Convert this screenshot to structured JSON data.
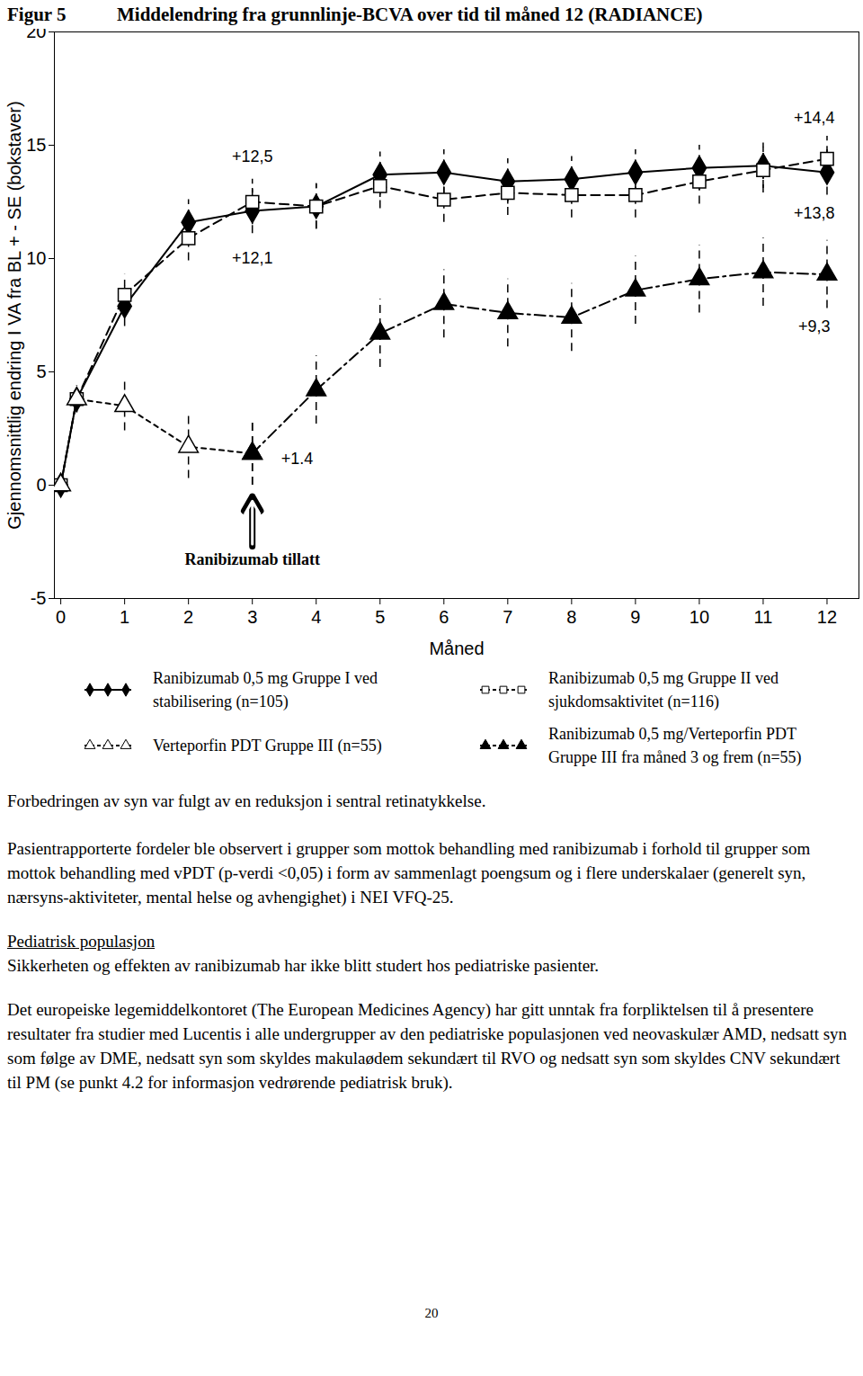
{
  "chart_data": {
    "type": "line",
    "title": "Middelendring fra grunnlinje-BCVA over tid til måned 12 (RADIANCE)",
    "x_label": "Måned",
    "y_label": "Gjennomsnittlig endring I VA fra BL + - SE (bokstaver)",
    "x": [
      0,
      0.25,
      1,
      2,
      3,
      4,
      5,
      6,
      7,
      8,
      9,
      10,
      11,
      12
    ],
    "xlim": [
      -0.1,
      12.5
    ],
    "xticks": [
      0,
      1,
      2,
      3,
      4,
      5,
      6,
      7,
      8,
      9,
      10,
      11,
      12
    ],
    "ylim": [
      -5,
      20
    ],
    "yticks": [
      -5,
      0,
      5,
      10,
      15,
      20
    ],
    "grid": false,
    "series": [
      {
        "name": "Ranibizumab 0,5 mg Gruppe I ved stabilisering (n=105)",
        "color": "#000000",
        "marker": "diamond",
        "line_style": "solid",
        "values": [
          0,
          3.8,
          7.9,
          11.6,
          12.1,
          12.3,
          13.7,
          13.8,
          13.4,
          13.5,
          13.8,
          14.0,
          14.1,
          13.8
        ],
        "errors": [
          0,
          0.6,
          0.9,
          1.0,
          1.0,
          1.0,
          1.0,
          1.0,
          1.0,
          1.0,
          1.0,
          1.0,
          1.0,
          1.0
        ]
      },
      {
        "name": "Ranibizumab 0,5 mg Gruppe II ved sjukdomsaktivitet (n=116)",
        "color": "#000000",
        "marker": "square-open",
        "line_style": "dashed",
        "values": [
          0,
          3.8,
          8.4,
          10.9,
          12.5,
          12.3,
          13.2,
          12.6,
          12.9,
          12.8,
          12.8,
          13.4,
          13.9,
          14.4
        ],
        "errors": [
          0,
          0.6,
          0.9,
          1.0,
          1.0,
          1.0,
          1.0,
          1.0,
          1.0,
          1.0,
          1.0,
          1.0,
          1.0,
          1.0
        ]
      },
      {
        "name": "Verteporfin PDT Gruppe III (n=55)",
        "color": "#000000",
        "marker": "triangle-open",
        "line_style": "dotted",
        "values": [
          0,
          3.8,
          3.5,
          1.7,
          1.4,
          null,
          null,
          null,
          null,
          null,
          null,
          null,
          null,
          null
        ],
        "errors": [
          0,
          0.6,
          1.1,
          1.4,
          1.4,
          null,
          null,
          null,
          null,
          null,
          null,
          null,
          null,
          null
        ]
      },
      {
        "name": "Ranibizumab 0,5 mg/Verteporfin PDT Gruppe III fra måned 3 og frem (n=55)",
        "color": "#000000",
        "marker": "triangle",
        "line_style": "dashdot",
        "values": [
          null,
          null,
          null,
          null,
          1.4,
          4.2,
          6.7,
          8.0,
          7.6,
          7.4,
          8.6,
          9.1,
          9.4,
          9.3
        ],
        "errors": [
          null,
          null,
          null,
          null,
          1.4,
          1.5,
          1.5,
          1.5,
          1.5,
          1.5,
          1.5,
          1.5,
          1.5,
          1.5
        ]
      }
    ],
    "annotations": [
      {
        "text": "+12,5",
        "x": 3,
        "y": 14.5
      },
      {
        "text": "+12,1",
        "x": 3,
        "y": 10.0
      },
      {
        "text": "+1.4",
        "x": 3.7,
        "y": 1.15
      },
      {
        "text": "+14,4",
        "x": 11.8,
        "y": 16.2
      },
      {
        "text": "+13,8",
        "x": 11.8,
        "y": 12.0
      },
      {
        "text": "+9,3",
        "x": 11.8,
        "y": 7.0
      },
      {
        "text": "Ranibizumab tillatt",
        "x": 3,
        "y": -3.3,
        "arrow": true
      }
    ]
  },
  "document": {
    "figure_label": "Figur 5",
    "caption": "Forbedringen av syn var fulgt av en reduksjon i sentral retinatykkelse.",
    "paragraph_1": "Pasientrapporterte fordeler ble observert i grupper som mottok behandling med ranibizumab i forhold til grupper som mottok behandling med vPDT (p-verdi <0,05) i form av sammenlagt poengsum og i flere underskalaer (generelt syn, nærsyns-aktiviteter, mental helse og avhengighet) i NEI VFQ-25.",
    "heading": "Pediatrisk populasjon",
    "paragraph_2": "Sikkerheten og effekten av ranibizumab har ikke blitt studert hos pediatriske pasienter.",
    "paragraph_3": "Det europeiske legemiddelkontoret (The European Medicines Agency) har gitt unntak fra forpliktelsen til å presentere resultater fra studier med Lucentis i alle undergrupper av den pediatriske populasjonen ved neovaskulær AMD, nedsatt syn som følge av DME, nedsatt syn som skyldes makulaødem sekundært til RVO og nedsatt syn som skyldes CNV sekundært til PM (se punkt 4.2 for informasjon vedrørende pediatrisk bruk).",
    "page_number": "20"
  }
}
